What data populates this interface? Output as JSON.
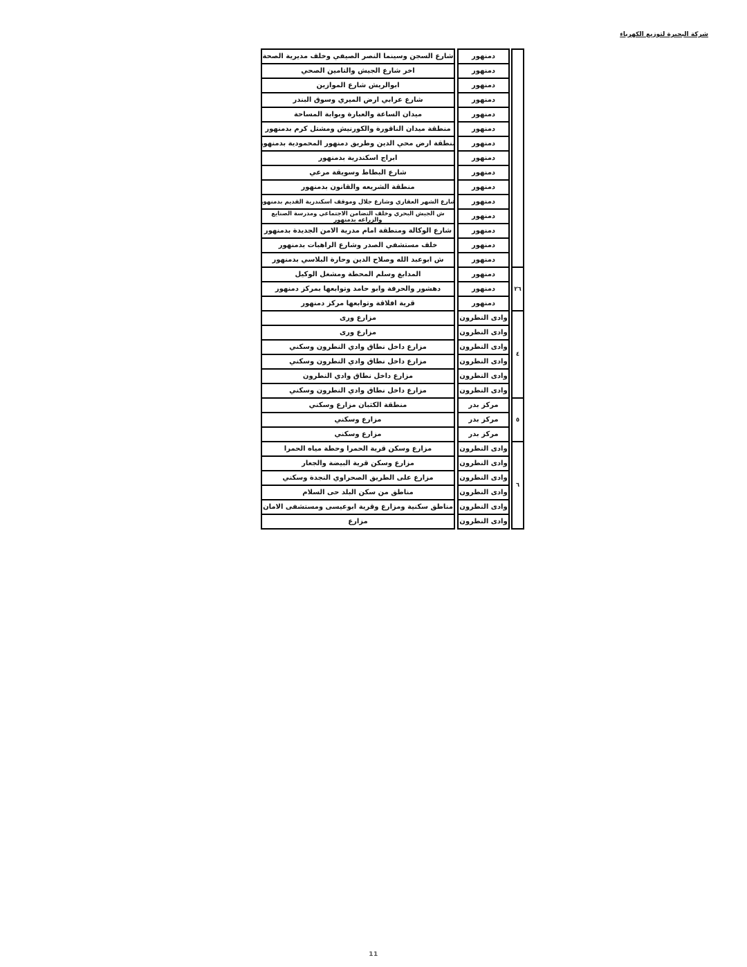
{
  "header": {
    "company_title": "شركة البحيرة لتوزيع الكهرباء"
  },
  "page_number": "11",
  "table": {
    "rows": [
      {
        "area": "شارع السجن وسينما النصر الصيفي وخلف مديرية الصحة",
        "city": "دمنهور"
      },
      {
        "area": "اخر شارع الجيش والتامين الصحي",
        "city": "دمنهور"
      },
      {
        "area": "ابوالريش شارع الموازين",
        "city": "دمنهور"
      },
      {
        "area": "شارع عرابي ارض الميري وسوق البندر",
        "city": "دمنهور"
      },
      {
        "area": "ميدان الساعة والعبارة وبوابة المساحة",
        "city": "دمنهور"
      },
      {
        "area": "منطقة ميدان الناقورة والكورنيش ومشتل كرم بدمنهور",
        "city": "دمنهور"
      },
      {
        "area": "منطقة ارض محي الدين وطريق دمنهور المحمودية بدمنهور",
        "city": "دمنهور"
      },
      {
        "area": "ابراج اسكندرية بدمنهور",
        "city": "دمنهور"
      },
      {
        "area": "شارع البطاط وسويقة مرعي",
        "city": "دمنهور"
      },
      {
        "area": "منطقة الشريعه والقانون بدمنهور",
        "city": "دمنهور"
      },
      {
        "area": "شارع الشهر العقاري وشارع جلال وموقف اسكندرية القديم بدمنهور",
        "city": "دمنهور"
      },
      {
        "area": "ش الجيش البحري وخلف التضامن الاجتماعي ومدرسة الصنايع والزراعه بدمنهور",
        "city": "دمنهور",
        "clipped": true
      },
      {
        "area": "شارع الوكالة ومنطقة امام مدرية الامن الجديدة بدمنهور",
        "city": "دمنهور"
      },
      {
        "area": "خلف مستشفي الصدر وشارع الراهبات بدمنهور",
        "city": "دمنهور"
      },
      {
        "area": "ش ابوعبد الله وصلاح الدين وحارة البلاسي بدمنهور",
        "city": "دمنهور"
      },
      {
        "area": "المدابغ وسلم المحطة ومشغل الوكيل",
        "city": "دمنهور"
      },
      {
        "area": "دهشور والحرفة وابو حامد وتوابعها بمركز دمنهور",
        "city": "دمنهور"
      },
      {
        "area": "قرية افلاقة وتوابعها مركز دمنهور",
        "city": "دمنهور"
      },
      {
        "area": "مزارع ورى",
        "city": "وادى النطرون"
      },
      {
        "area": "مزارع ورى",
        "city": "وادى النطرون"
      },
      {
        "area": "مزارع داخل نطاق وادي النطرون وسكني",
        "city": "وادى النطرون"
      },
      {
        "area": "مزارع داخل نطاق وادي النطرون وسكني",
        "city": "وادى النطرون"
      },
      {
        "area": "مزارع داخل نطاق وادي النطرون",
        "city": "وادى النطرون"
      },
      {
        "area": "مزارع داخل نطاق وادي النطرون وسكني",
        "city": "وادى النطرون"
      },
      {
        "area": "منطقة الكثبان مزارع وسكني",
        "city": "مركز بدر"
      },
      {
        "area": "مزارع وسكني",
        "city": "مركز بدر"
      },
      {
        "area": "مزارع وسكني",
        "city": "مركز بدر"
      },
      {
        "area": "مزارع وسكن قرية الحمرا وحطة مياه الحمرا",
        "city": "وادى النطرون"
      },
      {
        "area": "مزارع وسكن قرية البيضة والجعار",
        "city": "وادى النطرون"
      },
      {
        "area": "مزارع على الطريق الصحراوي النجدة وسكني",
        "city": "وادى النطرون"
      },
      {
        "area": "مناطق من سكن البلد حى السلام",
        "city": "وادى النطرون"
      },
      {
        "area": "مناطق سكنية ومزارع وقرية ابوعيسى ومستشفى الامان",
        "city": "وادى النطرون"
      },
      {
        "area": "مزارع",
        "city": "وادى النطرون"
      }
    ],
    "groups": [
      {
        "label": "",
        "span": 15
      },
      {
        "label": "٢٦",
        "span": 3
      },
      {
        "label": "٤",
        "span": 6
      },
      {
        "label": "٥",
        "span": 3
      },
      {
        "label": "٦",
        "span": 6
      }
    ]
  }
}
